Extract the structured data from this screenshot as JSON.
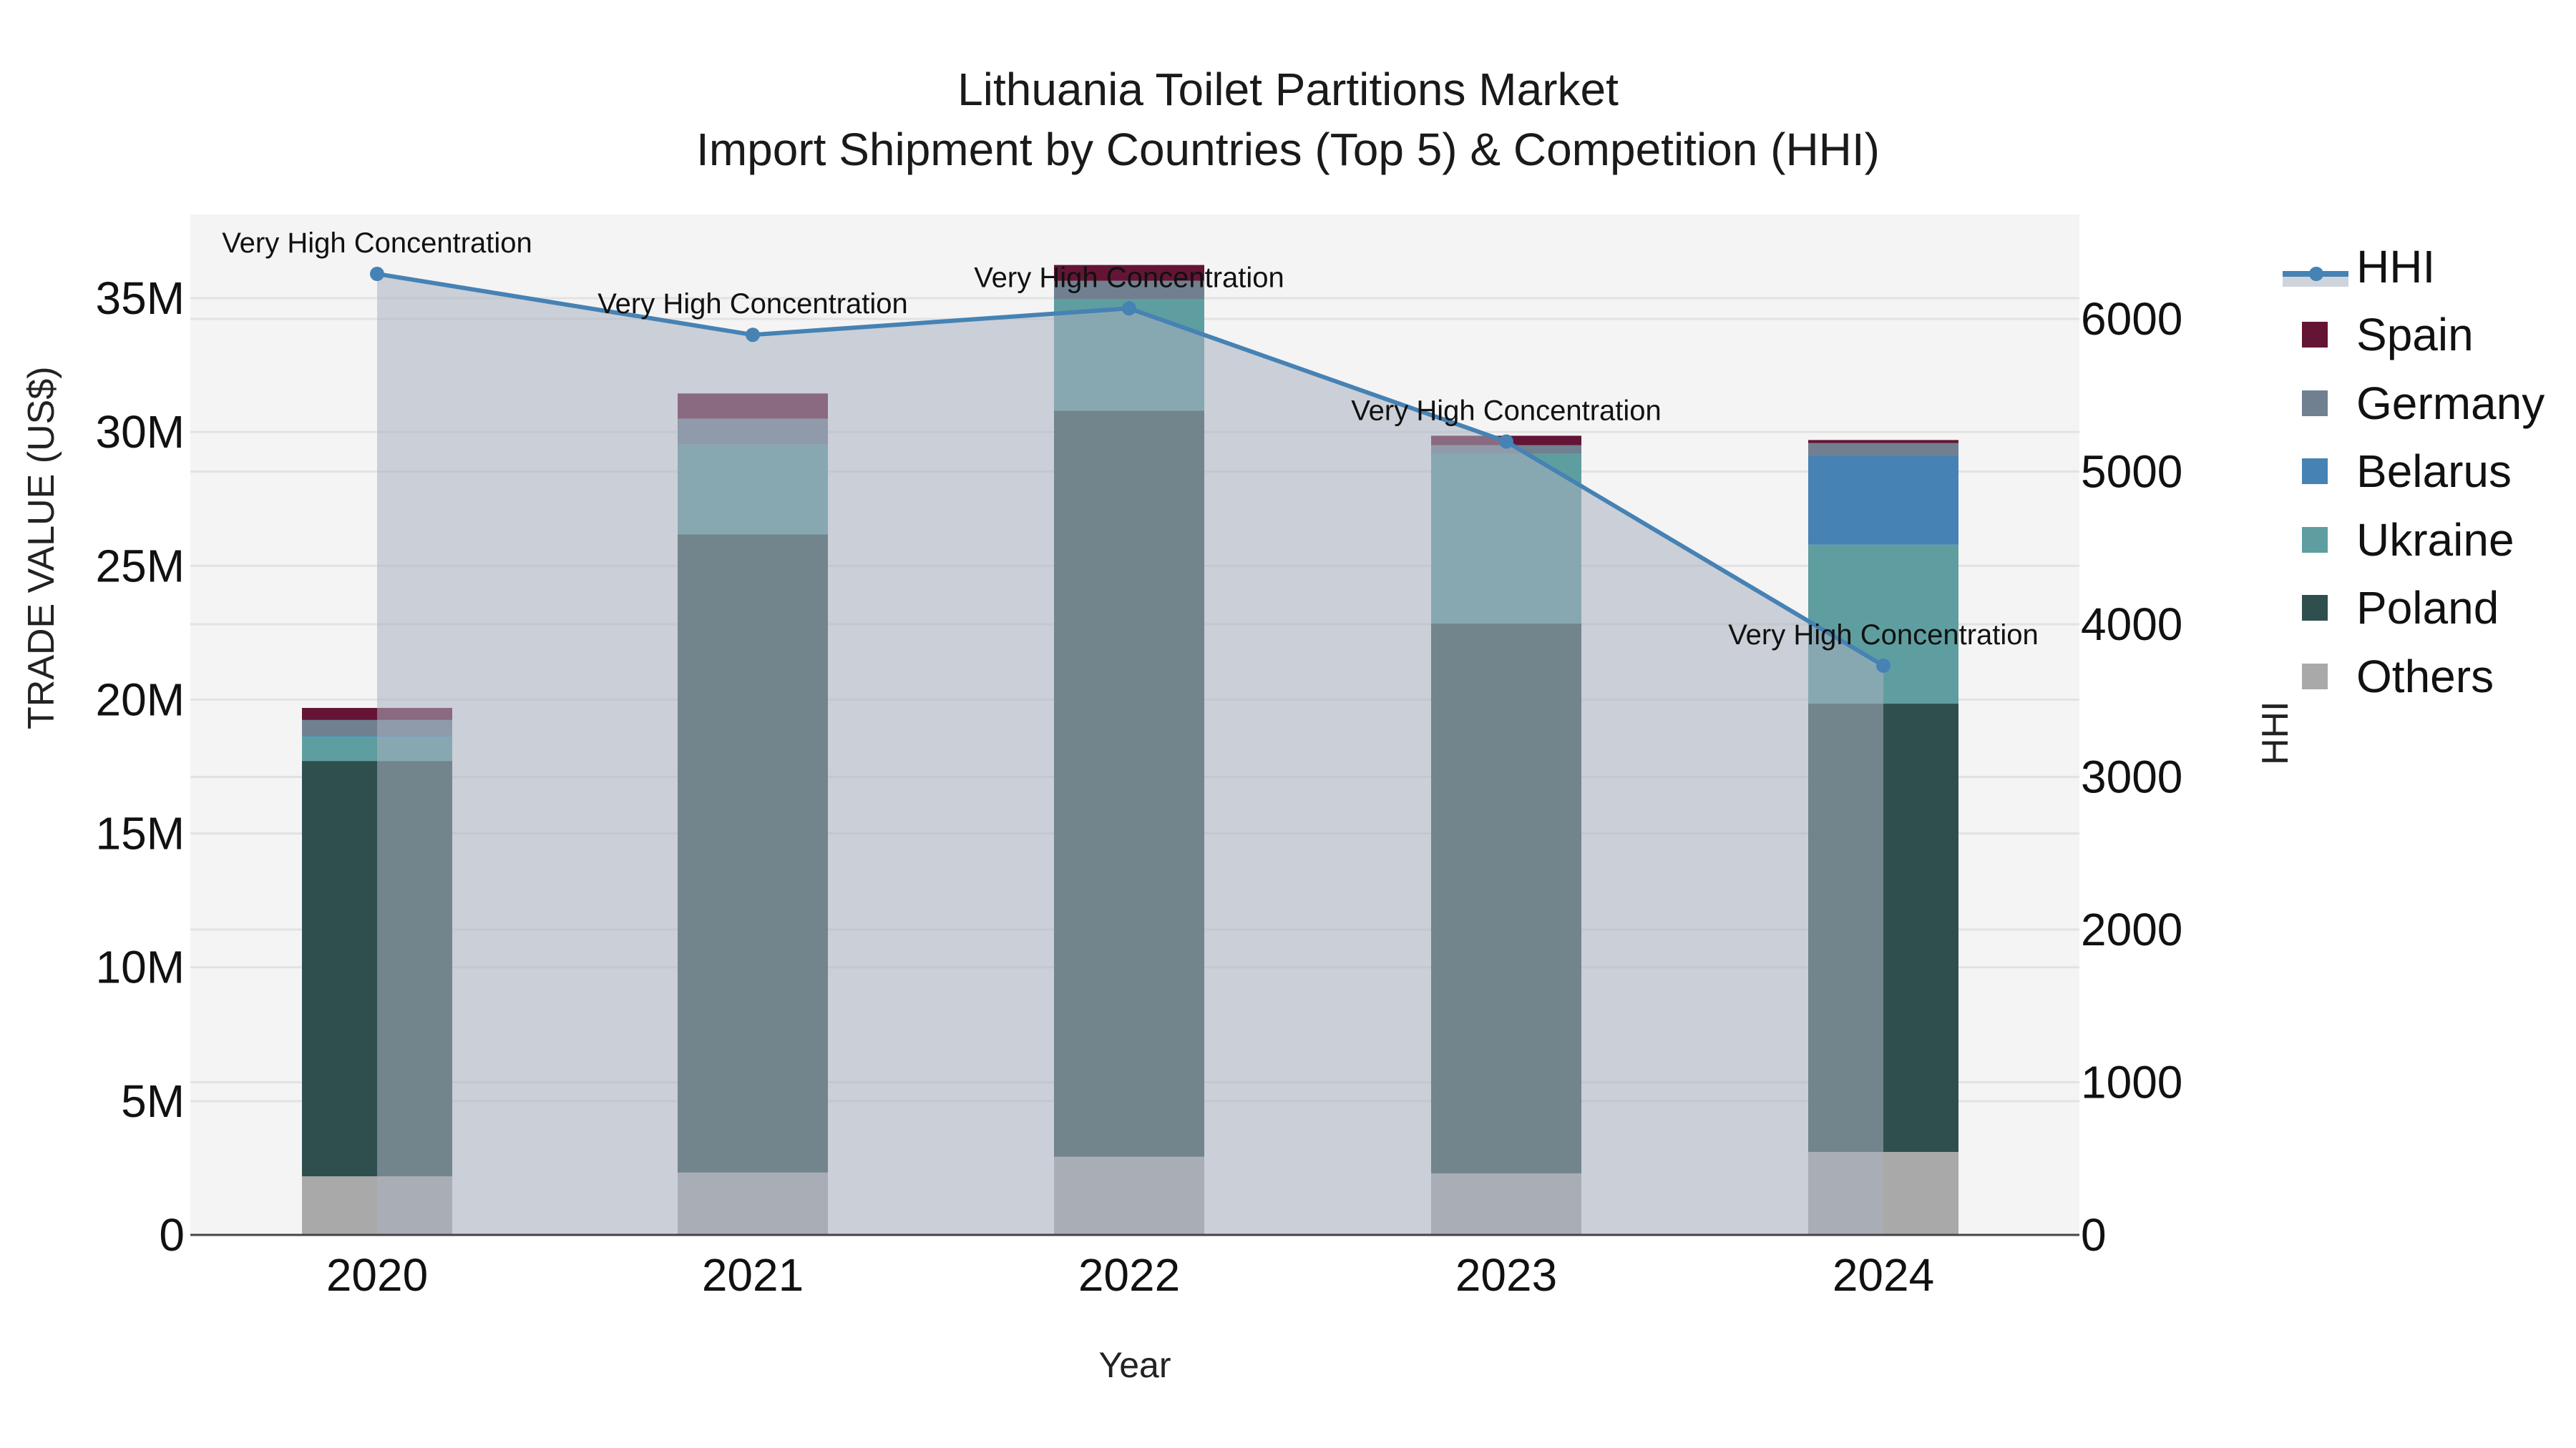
{
  "title": {
    "line1": "Lithuania Toilet Partitions Market",
    "line2": "Import Shipment by Countries (Top 5) & Competition (HHI)"
  },
  "axes": {
    "y_left_title": "TRADE VALUE (US$)",
    "y_right_title": "HHI",
    "x_title": "Year",
    "y_left_ticks": [
      "0",
      "5M",
      "10M",
      "15M",
      "20M",
      "25M",
      "30M",
      "35M"
    ],
    "y_right_ticks": [
      "0",
      "1000",
      "2000",
      "3000",
      "4000",
      "5000",
      "6000"
    ],
    "x_ticks": [
      "2020",
      "2021",
      "2022",
      "2023",
      "2024"
    ]
  },
  "legend": [
    {
      "name": "HHI",
      "type": "line",
      "color": "#4682b4"
    },
    {
      "name": "Spain",
      "type": "bar",
      "color": "#641434"
    },
    {
      "name": "Germany",
      "type": "bar",
      "color": "#708090"
    },
    {
      "name": "Belarus",
      "type": "bar",
      "color": "#4682b4"
    },
    {
      "name": "Ukraine",
      "type": "bar",
      "color": "#5f9ea0"
    },
    {
      "name": "Poland",
      "type": "bar",
      "color": "#2f4f4f"
    },
    {
      "name": "Others",
      "type": "bar",
      "color": "#a9a9a9"
    }
  ],
  "annotations": [
    {
      "year": "2020",
      "text": "Very High Concentration"
    },
    {
      "year": "2021",
      "text": "Very High Concentration"
    },
    {
      "year": "2022",
      "text": "Very High Concentration"
    },
    {
      "year": "2023",
      "text": "Very High Concentration"
    },
    {
      "year": "2024",
      "text": "Very High Concentration"
    }
  ],
  "chart_data": {
    "type": "bar",
    "subtype": "stacked bar with line (secondary axis)",
    "title": "Lithuania Toilet Partitions Market\nImport Shipment by Countries (Top 5) & Competition (HHI)",
    "xlabel": "Year",
    "ylabel": "TRADE VALUE (US$)",
    "y2label": "HHI",
    "categories": [
      "2020",
      "2021",
      "2022",
      "2023",
      "2024"
    ],
    "ylim": [
      0,
      37800000
    ],
    "y2lim": [
      0,
      6630
    ],
    "grid": true,
    "legend_position": "right",
    "stack_order_bottom_to_top": [
      "Others",
      "Poland",
      "Ukraine",
      "Belarus",
      "Germany",
      "Spain"
    ],
    "series": [
      {
        "name": "Others",
        "type": "bar",
        "axis": "left",
        "color": "#a9a9a9",
        "values": [
          2190000,
          2330000,
          2920000,
          2300000,
          3100000
        ]
      },
      {
        "name": "Poland",
        "type": "bar",
        "axis": "left",
        "color": "#2f4f4f",
        "values": [
          15520000,
          23840000,
          27880000,
          20550000,
          16750000
        ]
      },
      {
        "name": "Ukraine",
        "type": "bar",
        "axis": "left",
        "color": "#5f9ea0",
        "values": [
          910000,
          3370000,
          4150000,
          6340000,
          5940000
        ]
      },
      {
        "name": "Belarus",
        "type": "bar",
        "axis": "left",
        "color": "#4682b4",
        "values": [
          30000,
          0,
          0,
          0,
          3320000
        ]
      },
      {
        "name": "Germany",
        "type": "bar",
        "axis": "left",
        "color": "#708090",
        "values": [
          590000,
          960000,
          700000,
          320000,
          480000
        ]
      },
      {
        "name": "Spain",
        "type": "bar",
        "axis": "left",
        "color": "#641434",
        "values": [
          450000,
          940000,
          590000,
          350000,
          110000
        ]
      },
      {
        "name": "HHI",
        "type": "line",
        "axis": "right",
        "color": "#4682b4",
        "fill": "tozeroy",
        "values": [
          6295,
          5896,
          6069,
          5197,
          3729
        ]
      }
    ],
    "totals": [
      19690000,
      31440000,
      36230000,
      29860000,
      29700000
    ],
    "annotations": [
      "Very High Concentration",
      "Very High Concentration",
      "Very High Concentration",
      "Very High Concentration",
      "Very High Concentration"
    ]
  }
}
